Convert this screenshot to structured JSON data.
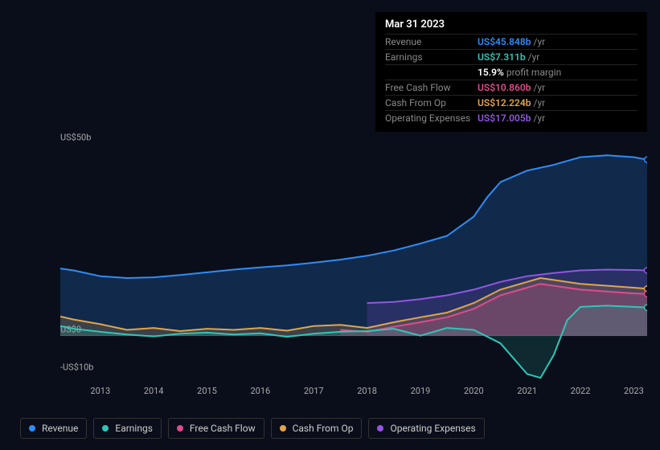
{
  "tooltip": {
    "date": "Mar 31 2023",
    "rows": [
      {
        "label": "Revenue",
        "value": "US$45.848b",
        "suffix": "/yr",
        "color": "#2e8df7"
      },
      {
        "label": "Earnings",
        "value": "US$7.311b",
        "suffix": "/yr",
        "color": "#2ec7b6"
      },
      {
        "label": "",
        "margin_value": "15.9%",
        "margin_label": "profit margin"
      },
      {
        "label": "Free Cash Flow",
        "value": "US$10.860b",
        "suffix": "/yr",
        "color": "#e24a8b"
      },
      {
        "label": "Cash From Op",
        "value": "US$12.224b",
        "suffix": "/yr",
        "color": "#e2a54a"
      },
      {
        "label": "Operating Expenses",
        "value": "US$17.005b",
        "suffix": "/yr",
        "color": "#9455e2"
      }
    ]
  },
  "chart": {
    "type": "area",
    "background_color": "#0a0e1a",
    "axis_line_color": "#444",
    "text_color": "#aaa",
    "x": {
      "min": 2012.25,
      "max": 2023.25,
      "ticks": [
        2013,
        2014,
        2015,
        2016,
        2017,
        2018,
        2019,
        2020,
        2021,
        2022,
        2023
      ]
    },
    "y": {
      "min": -12,
      "max": 55,
      "ticks": [
        {
          "v": 50,
          "label": "US$50b"
        },
        {
          "v": 0,
          "label": "US$0"
        },
        {
          "v": -10,
          "label": "-US$10b"
        }
      ]
    },
    "series": [
      {
        "name": "Revenue",
        "color": "#2e8df7",
        "fill": "rgba(46,141,247,0.22)",
        "stroke_width": 2,
        "marker_at_end": true,
        "data": [
          [
            2012.25,
            17.5
          ],
          [
            2012.5,
            17
          ],
          [
            2013,
            15.5
          ],
          [
            2013.5,
            15
          ],
          [
            2014,
            15.2
          ],
          [
            2014.5,
            15.8
          ],
          [
            2015,
            16.5
          ],
          [
            2015.5,
            17.2
          ],
          [
            2016,
            17.8
          ],
          [
            2016.5,
            18.3
          ],
          [
            2017,
            19
          ],
          [
            2017.5,
            19.8
          ],
          [
            2018,
            20.8
          ],
          [
            2018.5,
            22.2
          ],
          [
            2019,
            24
          ],
          [
            2019.5,
            26
          ],
          [
            2020,
            31
          ],
          [
            2020.25,
            36
          ],
          [
            2020.5,
            40
          ],
          [
            2021,
            43
          ],
          [
            2021.5,
            44.5
          ],
          [
            2022,
            46.5
          ],
          [
            2022.5,
            47
          ],
          [
            2023,
            46.5
          ],
          [
            2023.25,
            45.85
          ]
        ]
      },
      {
        "name": "Operating Expenses",
        "color": "#9455e2",
        "fill": "rgba(148,85,226,0.18)",
        "stroke_width": 2,
        "marker_at_end": true,
        "start_x": 2018,
        "data": [
          [
            2018,
            8.5
          ],
          [
            2018.5,
            8.8
          ],
          [
            2019,
            9.5
          ],
          [
            2019.5,
            10.5
          ],
          [
            2020,
            12
          ],
          [
            2020.5,
            14
          ],
          [
            2021,
            15.5
          ],
          [
            2021.5,
            16.3
          ],
          [
            2022,
            17
          ],
          [
            2022.5,
            17.2
          ],
          [
            2023,
            17.1
          ],
          [
            2023.25,
            17.0
          ]
        ]
      },
      {
        "name": "Cash From Op",
        "color": "#e2a54a",
        "fill": "rgba(226,165,74,0.20)",
        "stroke_width": 2,
        "marker_at_end": true,
        "data": [
          [
            2012.25,
            5
          ],
          [
            2012.5,
            4.2
          ],
          [
            2013,
            3
          ],
          [
            2013.5,
            1.5
          ],
          [
            2014,
            2
          ],
          [
            2014.5,
            1.2
          ],
          [
            2015,
            1.8
          ],
          [
            2015.5,
            1.5
          ],
          [
            2016,
            2
          ],
          [
            2016.5,
            1.3
          ],
          [
            2017,
            2.5
          ],
          [
            2017.5,
            2.8
          ],
          [
            2018,
            2
          ],
          [
            2018.5,
            3.5
          ],
          [
            2019,
            4.8
          ],
          [
            2019.5,
            6
          ],
          [
            2020,
            8.5
          ],
          [
            2020.5,
            12
          ],
          [
            2021,
            14
          ],
          [
            2021.25,
            15
          ],
          [
            2021.5,
            14.5
          ],
          [
            2022,
            13.5
          ],
          [
            2022.5,
            13
          ],
          [
            2023,
            12.5
          ],
          [
            2023.25,
            12.22
          ]
        ]
      },
      {
        "name": "Free Cash Flow",
        "color": "#e24a8b",
        "fill": "rgba(226,74,139,0.20)",
        "stroke_width": 2,
        "marker_at_end": true,
        "start_x": 2017.5,
        "data": [
          [
            2017.5,
            1.5
          ],
          [
            2018,
            1
          ],
          [
            2018.5,
            2.3
          ],
          [
            2019,
            3.5
          ],
          [
            2019.5,
            4.8
          ],
          [
            2020,
            7
          ],
          [
            2020.5,
            10.5
          ],
          [
            2021,
            12.5
          ],
          [
            2021.25,
            13.5
          ],
          [
            2021.5,
            13
          ],
          [
            2022,
            12
          ],
          [
            2022.5,
            11.5
          ],
          [
            2023,
            11
          ],
          [
            2023.25,
            10.86
          ]
        ]
      },
      {
        "name": "Earnings",
        "color": "#2ec7b6",
        "fill": "rgba(46,199,182,0.15)",
        "stroke_width": 2,
        "marker_at_end": true,
        "data": [
          [
            2012.25,
            2.5
          ],
          [
            2012.5,
            1.8
          ],
          [
            2013,
            1
          ],
          [
            2013.5,
            0.3
          ],
          [
            2014,
            -0.2
          ],
          [
            2014.5,
            0.5
          ],
          [
            2015,
            0.8
          ],
          [
            2015.5,
            0.3
          ],
          [
            2016,
            0.6
          ],
          [
            2016.5,
            -0.3
          ],
          [
            2017,
            0.5
          ],
          [
            2017.5,
            1
          ],
          [
            2018,
            1.2
          ],
          [
            2018.5,
            1.8
          ],
          [
            2019,
            0
          ],
          [
            2019.5,
            2
          ],
          [
            2020,
            1.5
          ],
          [
            2020.5,
            -2
          ],
          [
            2020.75,
            -6
          ],
          [
            2021,
            -10
          ],
          [
            2021.25,
            -11
          ],
          [
            2021.5,
            -5
          ],
          [
            2021.75,
            4
          ],
          [
            2022,
            7.5
          ],
          [
            2022.5,
            7.8
          ],
          [
            2023,
            7.5
          ],
          [
            2023.25,
            7.31
          ]
        ]
      }
    ]
  },
  "legend": [
    {
      "label": "Revenue",
      "color": "#2e8df7"
    },
    {
      "label": "Earnings",
      "color": "#2ec7b6"
    },
    {
      "label": "Free Cash Flow",
      "color": "#e24a8b"
    },
    {
      "label": "Cash From Op",
      "color": "#e2a54a"
    },
    {
      "label": "Operating Expenses",
      "color": "#9455e2"
    }
  ]
}
